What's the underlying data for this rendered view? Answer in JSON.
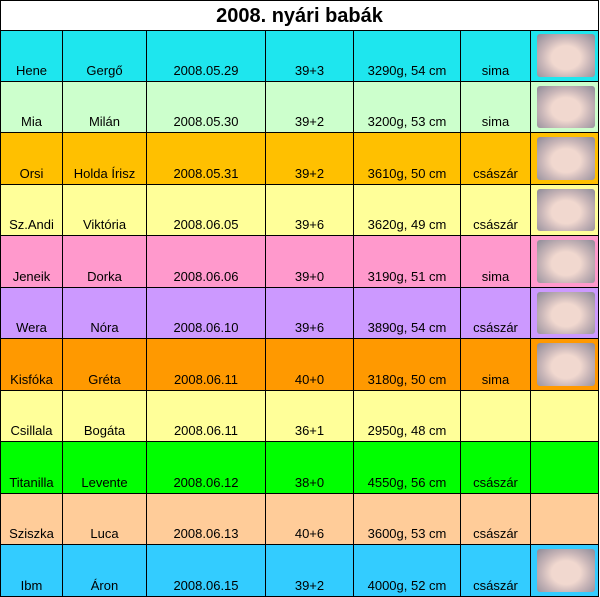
{
  "header": {
    "title": "2008. nyári babák"
  },
  "table": {
    "rows": [
      [
        "Hene",
        "Gergő",
        "2008.05.29",
        "39+3",
        "3290g, 54 cm",
        "sima"
      ],
      [
        "Mia",
        "Milán",
        "2008.05.30",
        "39+2",
        "3200g, 53 cm",
        "sima"
      ],
      [
        "Orsi",
        "Holda Írisz",
        "2008.05.31",
        "39+2",
        "3610g, 50 cm",
        "császár"
      ],
      [
        "Sz.Andi",
        "Viktória",
        "2008.06.05",
        "39+6",
        "3620g, 49 cm",
        "császár"
      ],
      [
        "Jeneik",
        "Dorka",
        "2008.06.06",
        "39+0",
        "3190g, 51 cm",
        "sima"
      ],
      [
        "Wera",
        "Nóra",
        "2008.06.10",
        "39+6",
        "3890g, 54 cm",
        "császár"
      ],
      [
        "Kisfóka",
        "Gréta",
        "2008.06.11",
        "40+0",
        "3180g, 50 cm",
        "sima"
      ],
      [
        "Csillala",
        "Bogáta",
        "2008.06.11",
        "36+1",
        "2950g, 48 cm",
        null
      ],
      [
        "Titanilla",
        "Levente",
        "2008.06.12",
        "38+0",
        "4550g, 56 cm",
        "császár"
      ],
      [
        "Sziszka",
        "Luca",
        "2008.06.13",
        "40+6",
        "3600g, 53 cm",
        "császár"
      ],
      [
        "Ibm",
        "Áron",
        "2008.06.15",
        "39+2",
        "4000g, 52 cm",
        "császár"
      ]
    ]
  }
}
